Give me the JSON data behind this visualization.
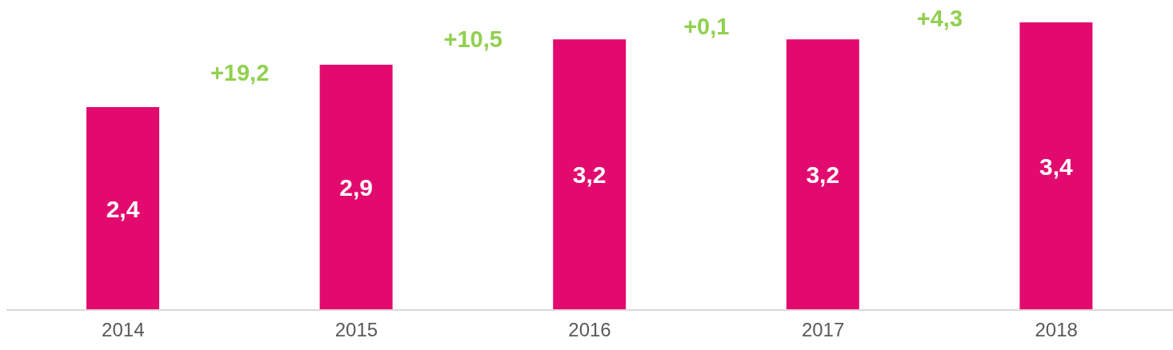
{
  "chart_data": {
    "type": "bar",
    "categories": [
      "2014",
      "2015",
      "2016",
      "2017",
      "2018"
    ],
    "values": [
      2.4,
      2.9,
      3.2,
      3.2,
      3.4
    ],
    "color": "#e20a6e",
    "value_labels": [
      "2,4",
      "2,9",
      "3,2",
      "3,2",
      "3,4"
    ],
    "annotations": [
      "+19,2",
      "+10,5",
      "+0,1",
      "+4,3"
    ],
    "grid": false
  }
}
